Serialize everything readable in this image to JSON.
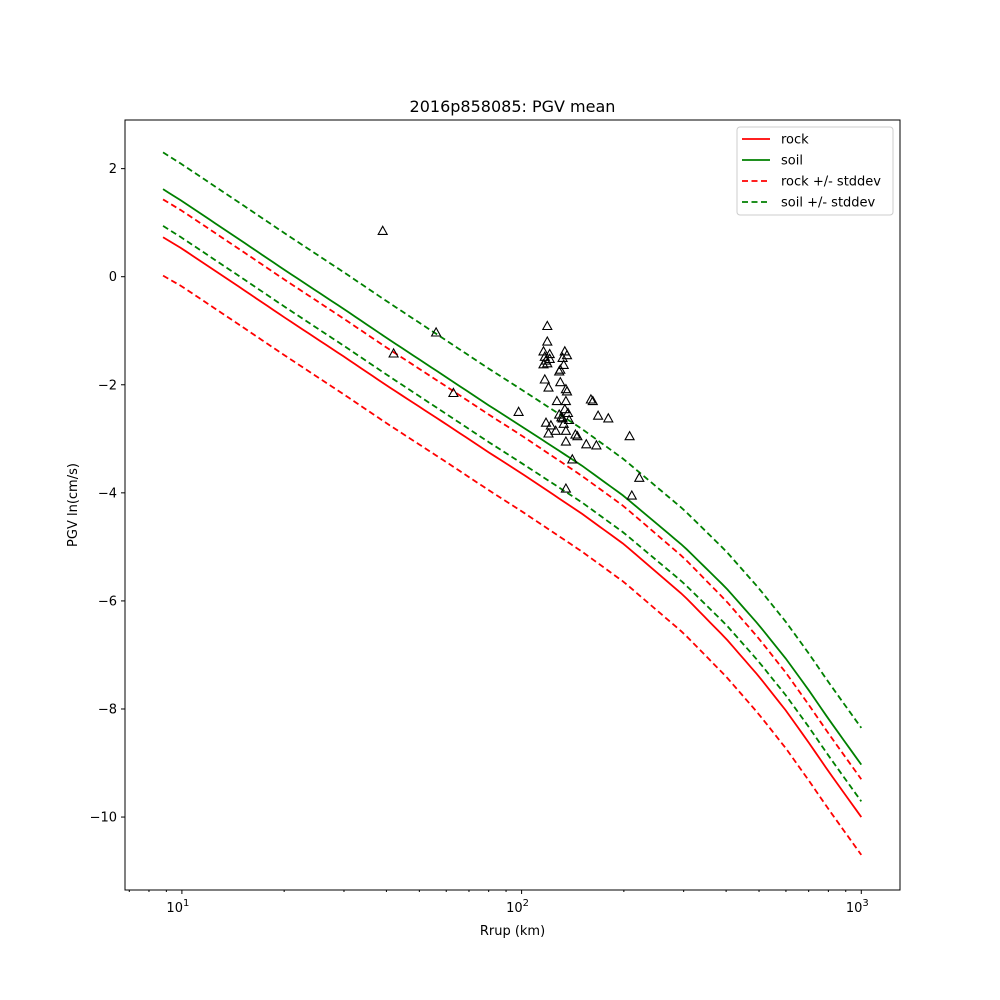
{
  "chart_data": {
    "type": "line",
    "title": "2016p858085: PGV mean",
    "xlabel": "Rrup (km)",
    "ylabel": "PGV ln(cm/s)",
    "x_scale": "log",
    "xlim": [
      6.8,
      1300
    ],
    "ylim": [
      -11.35,
      2.9
    ],
    "grid": false,
    "legend_position": "upper right",
    "x_ticks": [
      {
        "value": 10,
        "label": "10^1"
      },
      {
        "value": 100,
        "label": "10^2"
      },
      {
        "value": 1000,
        "label": "10^3"
      }
    ],
    "y_ticks": [
      2,
      0,
      -2,
      -4,
      -6,
      -8,
      -10
    ],
    "series": [
      {
        "name": "rock",
        "color": "#ff0000",
        "style": "solid",
        "x": [
          8.8,
          10,
          15,
          20,
          30,
          40,
          60,
          80,
          100,
          150,
          200,
          300,
          400,
          500,
          600,
          700,
          800,
          900,
          1000
        ],
        "y": [
          0.73,
          0.52,
          -0.22,
          -0.75,
          -1.48,
          -2.01,
          -2.73,
          -3.25,
          -3.64,
          -4.38,
          -4.95,
          -5.9,
          -6.7,
          -7.4,
          -8.03,
          -8.62,
          -9.15,
          -9.6,
          -10.0
        ]
      },
      {
        "name": "soil",
        "color": "#008000",
        "style": "solid",
        "x": [
          8.8,
          10,
          15,
          20,
          30,
          40,
          60,
          80,
          100,
          150,
          200,
          300,
          400,
          500,
          600,
          700,
          800,
          900,
          1000
        ],
        "y": [
          1.62,
          1.4,
          0.66,
          0.13,
          -0.6,
          -1.13,
          -1.86,
          -2.38,
          -2.77,
          -3.49,
          -4.06,
          -4.99,
          -5.76,
          -6.45,
          -7.07,
          -7.65,
          -8.18,
          -8.63,
          -9.03
        ]
      },
      {
        "name": "rock +/- stddev",
        "color": "#ff0000",
        "style": "dashed",
        "x": [
          8.8,
          10,
          15,
          20,
          30,
          40,
          60,
          80,
          100,
          150,
          200,
          300,
          400,
          500,
          600,
          700,
          800,
          900,
          1000
        ],
        "y": [
          1.43,
          1.22,
          0.48,
          -0.05,
          -0.78,
          -1.31,
          -2.03,
          -2.55,
          -2.94,
          -3.68,
          -4.25,
          -5.2,
          -6.0,
          -6.7,
          -7.33,
          -7.92,
          -8.45,
          -8.9,
          -9.3
        ]
      },
      {
        "name": "",
        "color": "#ff0000",
        "style": "dashed",
        "x": [
          8.8,
          10,
          15,
          20,
          30,
          40,
          60,
          80,
          100,
          150,
          200,
          300,
          400,
          500,
          600,
          700,
          800,
          900,
          1000
        ],
        "y": [
          0.02,
          -0.18,
          -0.92,
          -1.45,
          -2.18,
          -2.71,
          -3.43,
          -3.95,
          -4.34,
          -5.08,
          -5.65,
          -6.6,
          -7.4,
          -8.1,
          -8.73,
          -9.32,
          -9.85,
          -10.3,
          -10.7
        ]
      },
      {
        "name": "soil +/- stddev",
        "color": "#008000",
        "style": "dashed",
        "x": [
          8.8,
          10,
          15,
          20,
          30,
          40,
          60,
          80,
          100,
          150,
          200,
          300,
          400,
          500,
          600,
          700,
          800,
          900,
          1000
        ],
        "y": [
          2.3,
          2.08,
          1.34,
          0.81,
          0.08,
          -0.45,
          -1.18,
          -1.7,
          -2.09,
          -2.81,
          -3.38,
          -4.31,
          -5.08,
          -5.77,
          -6.39,
          -6.97,
          -7.5,
          -7.95,
          -8.35
        ]
      },
      {
        "name": "",
        "color": "#008000",
        "style": "dashed",
        "x": [
          8.8,
          10,
          15,
          20,
          30,
          40,
          60,
          80,
          100,
          150,
          200,
          300,
          400,
          500,
          600,
          700,
          800,
          900,
          1000
        ],
        "y": [
          0.94,
          0.72,
          -0.02,
          -0.55,
          -1.28,
          -1.81,
          -2.54,
          -3.06,
          -3.45,
          -4.17,
          -4.74,
          -5.67,
          -6.44,
          -7.13,
          -7.75,
          -8.33,
          -8.86,
          -9.31,
          -9.71
        ]
      }
    ],
    "observations": {
      "marker": "triangle",
      "color": "#000000",
      "points": [
        [
          39,
          0.85
        ],
        [
          42,
          -1.42
        ],
        [
          56,
          -1.03
        ],
        [
          63,
          -2.15
        ],
        [
          98,
          -2.5
        ],
        [
          116,
          -1.38
        ],
        [
          116,
          -1.62
        ],
        [
          117,
          -1.9
        ],
        [
          117,
          -1.48
        ],
        [
          118,
          -1.55
        ],
        [
          118,
          -2.7
        ],
        [
          119,
          -0.91
        ],
        [
          119,
          -1.2
        ],
        [
          119,
          -1.6
        ],
        [
          120,
          -2.05
        ],
        [
          120,
          -2.9
        ],
        [
          121,
          -1.43
        ],
        [
          121,
          -1.52
        ],
        [
          122,
          -2.75
        ],
        [
          126,
          -2.85
        ],
        [
          127,
          -2.3
        ],
        [
          129,
          -2.55
        ],
        [
          129,
          -1.75
        ],
        [
          130,
          -1.95
        ],
        [
          130,
          -1.72
        ],
        [
          131,
          -2.6
        ],
        [
          132,
          -1.5
        ],
        [
          132,
          -2.62
        ],
        [
          133,
          -1.63
        ],
        [
          133,
          -2.72
        ],
        [
          134,
          -2.45
        ],
        [
          134,
          -1.38
        ],
        [
          135,
          -2.08
        ],
        [
          135,
          -2.3
        ],
        [
          135,
          -2.85
        ],
        [
          135,
          -3.05
        ],
        [
          135,
          -3.92
        ],
        [
          136,
          -1.45
        ],
        [
          136,
          -2.12
        ],
        [
          137,
          -2.52
        ],
        [
          138,
          -2.65
        ],
        [
          141,
          -3.38
        ],
        [
          144,
          -2.92
        ],
        [
          146,
          -2.95
        ],
        [
          155,
          -3.1
        ],
        [
          160,
          -2.27
        ],
        [
          162,
          -2.3
        ],
        [
          166,
          -3.12
        ],
        [
          168,
          -2.57
        ],
        [
          180,
          -2.62
        ],
        [
          208,
          -2.95
        ],
        [
          211,
          -4.05
        ],
        [
          222,
          -3.72
        ]
      ]
    }
  }
}
